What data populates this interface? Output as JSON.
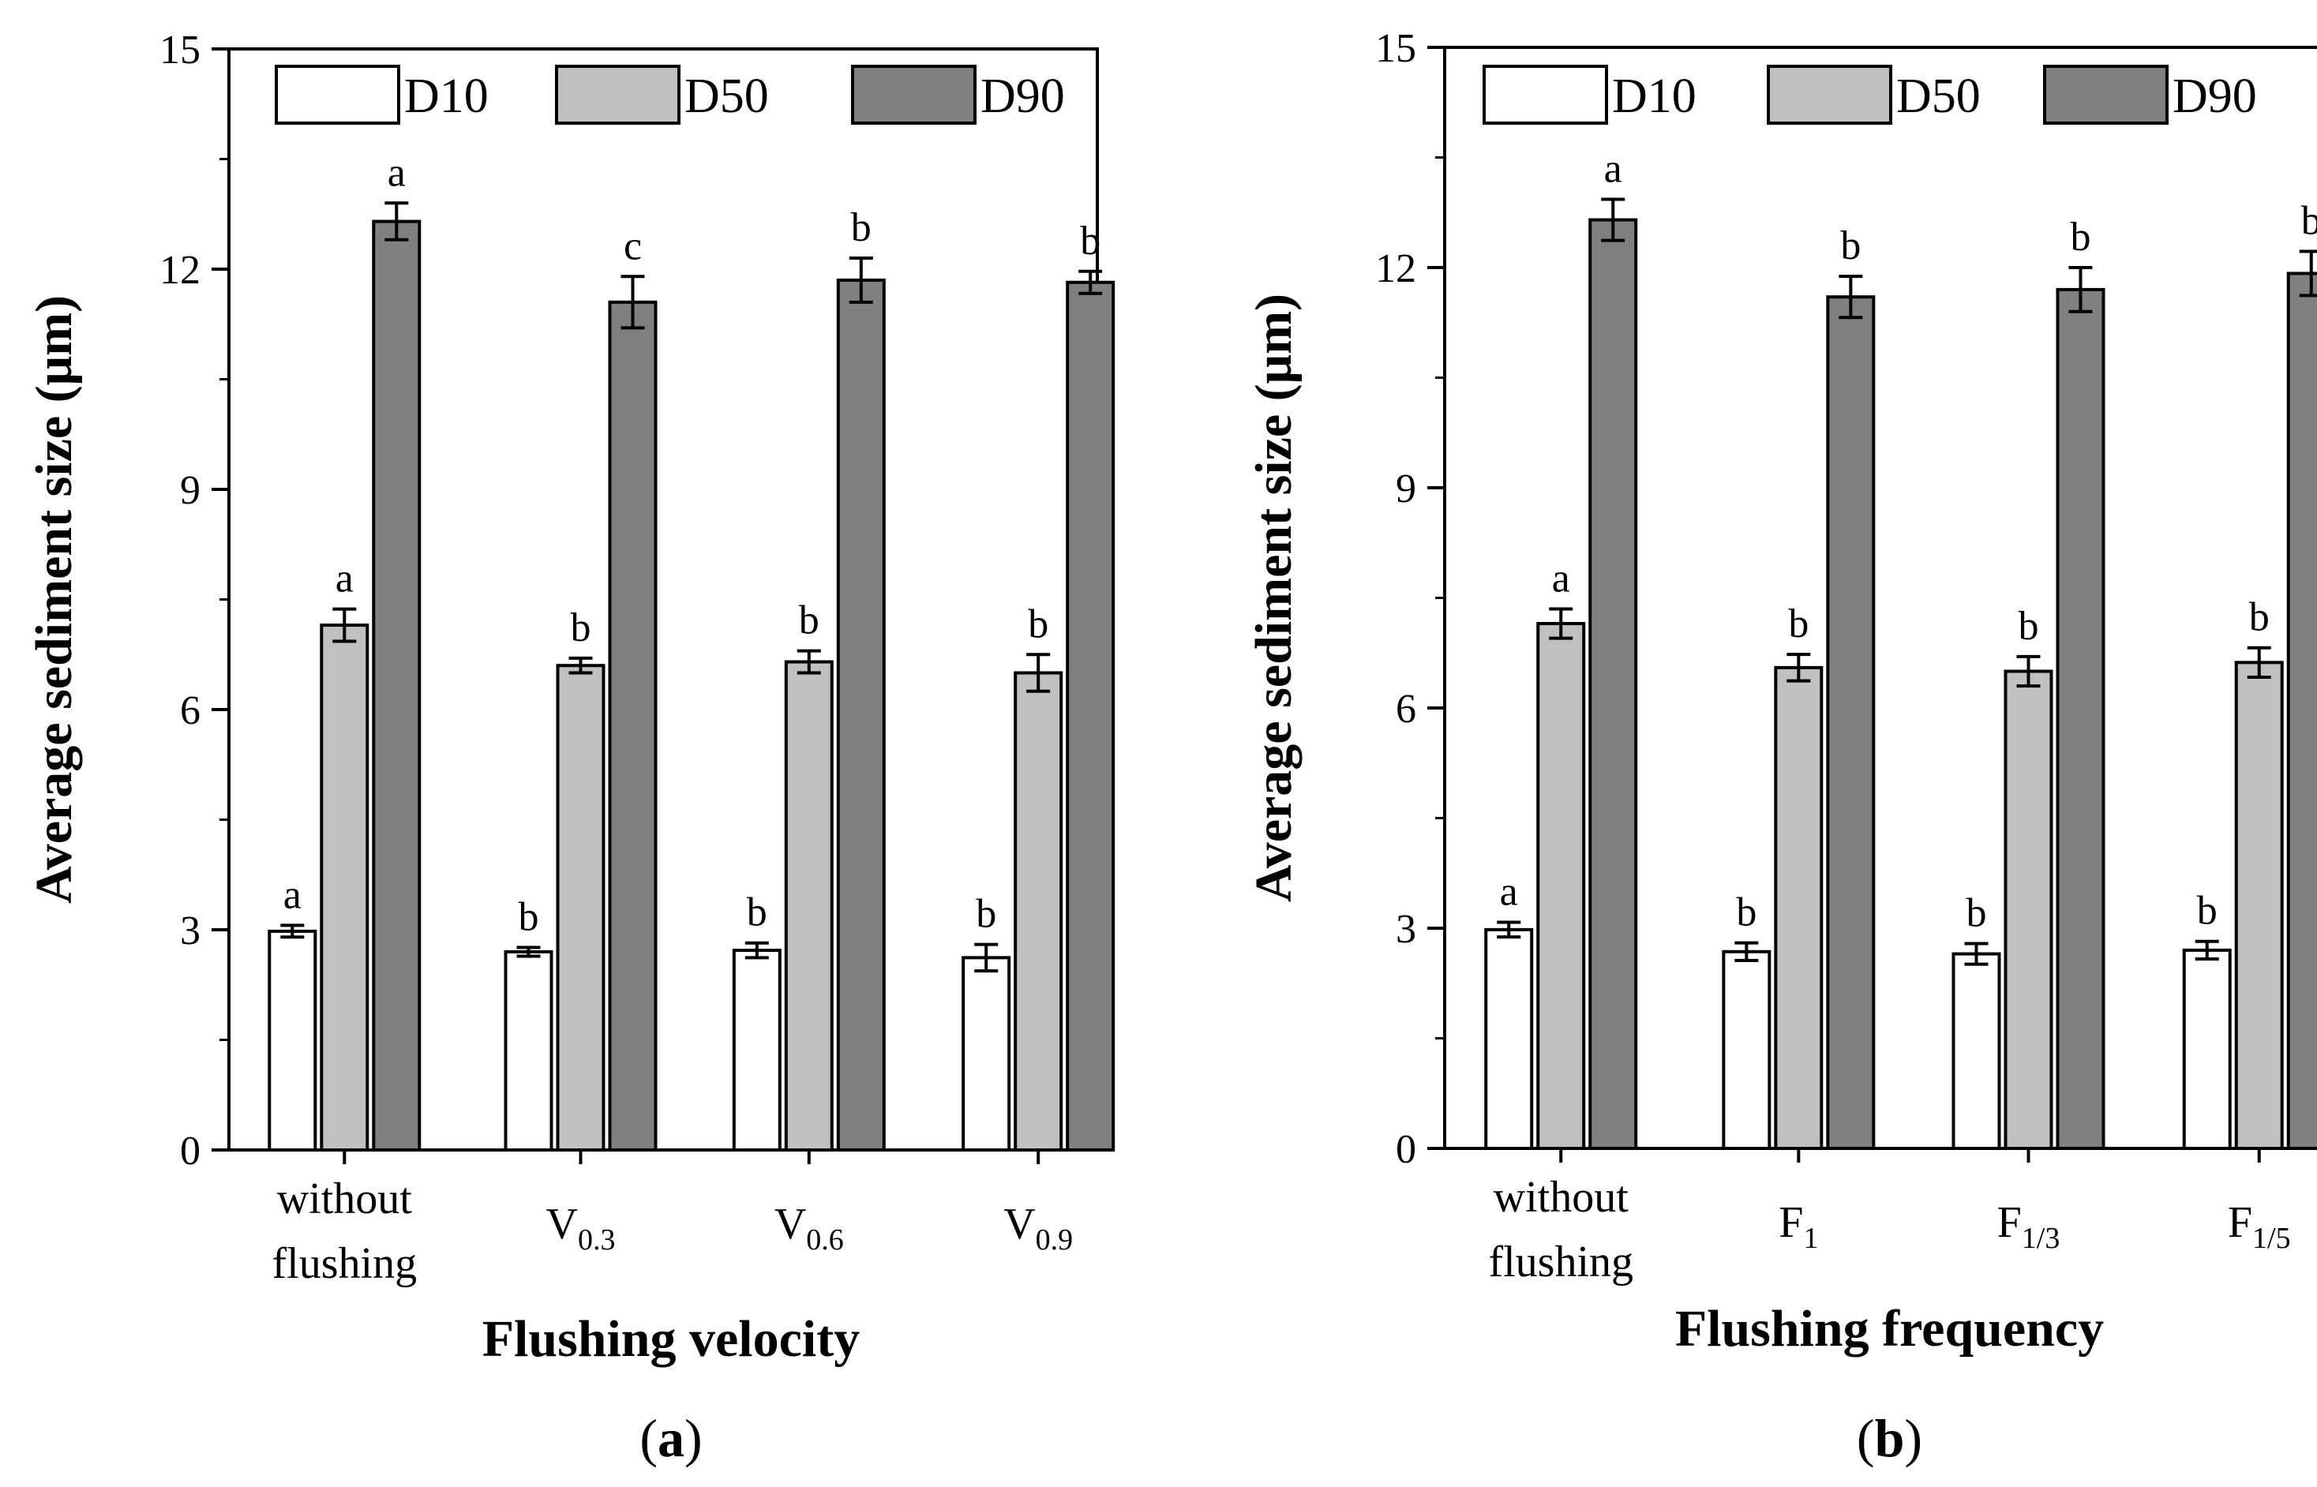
{
  "figure": {
    "description_labels": [
      "(a)",
      "(b)"
    ]
  },
  "colors": {
    "D10": "#ffffff",
    "D50": "#c0c0c0",
    "D90": "#808080",
    "stroke": "#000000"
  },
  "chart_data": [
    {
      "type": "bar",
      "panel_label": "(a)",
      "panel_letter": "a",
      "xlabel": "Flushing velocity",
      "ylabel": "Average sediment size (μm)",
      "ylim": [
        0,
        15
      ],
      "yticks": [
        0,
        3,
        6,
        9,
        12,
        15
      ],
      "categories": [
        {
          "lines": [
            "without",
            "flushing"
          ]
        },
        {
          "main": "V",
          "sub": "0.3"
        },
        {
          "main": "V",
          "sub": "0.6"
        },
        {
          "main": "V",
          "sub": "0.9"
        }
      ],
      "legend": [
        "D10",
        "D50",
        "D90"
      ],
      "series": [
        {
          "name": "D10",
          "values": [
            2.98,
            2.7,
            2.72,
            2.62
          ],
          "errors": [
            0.08,
            0.06,
            0.1,
            0.18
          ],
          "letters": [
            "a",
            "b",
            "b",
            "b"
          ]
        },
        {
          "name": "D50",
          "values": [
            7.15,
            6.6,
            6.65,
            6.5
          ],
          "errors": [
            0.22,
            0.1,
            0.15,
            0.25
          ],
          "letters": [
            "a",
            "b",
            "b",
            "b"
          ]
        },
        {
          "name": "D90",
          "values": [
            12.65,
            11.55,
            11.85,
            11.82
          ],
          "errors": [
            0.25,
            0.35,
            0.3,
            0.15
          ],
          "letters": [
            "a",
            "c",
            "b",
            "b"
          ]
        }
      ]
    },
    {
      "type": "bar",
      "panel_label": "(b)",
      "panel_letter": "b",
      "xlabel": "Flushing frequency",
      "ylabel": "Average sediment size (μm)",
      "ylim": [
        0,
        15
      ],
      "yticks": [
        0,
        3,
        6,
        9,
        12,
        15
      ],
      "categories": [
        {
          "lines": [
            "without",
            "flushing"
          ]
        },
        {
          "main": "F",
          "sub": "1"
        },
        {
          "main": "F",
          "sub": "1/3"
        },
        {
          "main": "F",
          "sub": "1/5"
        }
      ],
      "legend": [
        "D10",
        "D50",
        "D90"
      ],
      "series": [
        {
          "name": "D10",
          "values": [
            2.98,
            2.68,
            2.65,
            2.7
          ],
          "errors": [
            0.1,
            0.12,
            0.14,
            0.12
          ],
          "letters": [
            "a",
            "b",
            "b",
            "b"
          ]
        },
        {
          "name": "D50",
          "values": [
            7.15,
            6.55,
            6.5,
            6.62
          ],
          "errors": [
            0.2,
            0.18,
            0.2,
            0.2
          ],
          "letters": [
            "a",
            "b",
            "b",
            "b"
          ]
        },
        {
          "name": "D90",
          "values": [
            12.65,
            11.6,
            11.7,
            11.92
          ],
          "errors": [
            0.28,
            0.28,
            0.3,
            0.3
          ],
          "letters": [
            "a",
            "b",
            "b",
            "b"
          ]
        }
      ]
    }
  ]
}
